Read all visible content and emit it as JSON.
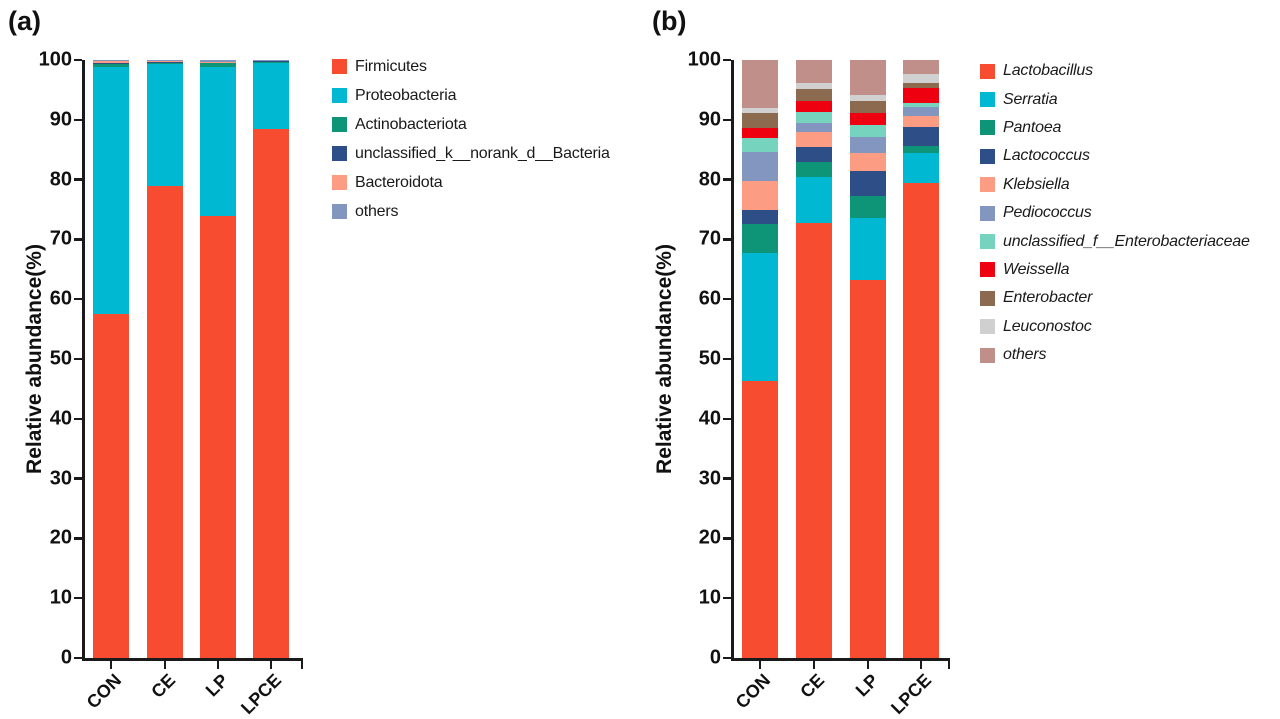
{
  "chart_data": [
    {
      "type": "bar",
      "stacked": true,
      "panel_label": "(a)",
      "ylabel": "Relative abundance(%)",
      "xlabel": "",
      "ylim": [
        0,
        100
      ],
      "yticks": [
        0,
        10,
        20,
        30,
        40,
        50,
        60,
        70,
        80,
        90,
        100
      ],
      "grid": false,
      "legend_position": "right",
      "legend_italic": false,
      "categories": [
        "CON",
        "CE",
        "LP",
        "LPCE"
      ],
      "series": [
        {
          "name": "Firmicutes",
          "color": "#F84C30",
          "values": [
            57.6,
            78.9,
            73.9,
            88.4
          ]
        },
        {
          "name": "Proteobacteria",
          "color": "#00B8D1",
          "values": [
            41.3,
            20.6,
            25.0,
            11.15
          ]
        },
        {
          "name": "Actinobacteriota",
          "color": "#0E9477",
          "values": [
            0.45,
            0.05,
            0.55,
            0.05
          ]
        },
        {
          "name": "unclassified_k__norank_d__Bacteria",
          "color": "#2E4E87",
          "values": [
            0.1,
            0.3,
            0.2,
            0.3
          ]
        },
        {
          "name": "Bacteroidota",
          "color": "#FB9C83",
          "values": [
            0.5,
            0.05,
            0.05,
            0.05
          ]
        },
        {
          "name": "others",
          "color": "#8396BF",
          "values": [
            0.05,
            0.1,
            0.3,
            0.05
          ]
        }
      ]
    },
    {
      "type": "bar",
      "stacked": true,
      "panel_label": "(b)",
      "ylabel": "Relative abundance(%)",
      "xlabel": "",
      "ylim": [
        0,
        100
      ],
      "yticks": [
        0,
        10,
        20,
        30,
        40,
        50,
        60,
        70,
        80,
        90,
        100
      ],
      "grid": false,
      "legend_position": "right",
      "legend_italic": true,
      "categories": [
        "CON",
        "CE",
        "LP",
        "LPCE"
      ],
      "series": [
        {
          "name": "Lactobacillus",
          "color": "#F84C30",
          "values": [
            46.3,
            72.8,
            63.2,
            79.5
          ]
        },
        {
          "name": "Serratia",
          "color": "#00B8D1",
          "values": [
            21.4,
            7.6,
            10.4,
            5.0
          ]
        },
        {
          "name": "Pantoea",
          "color": "#0E9477",
          "values": [
            4.8,
            2.6,
            3.6,
            1.1
          ]
        },
        {
          "name": "Lactococcus",
          "color": "#2E4E87",
          "values": [
            2.4,
            2.4,
            4.2,
            3.2
          ]
        },
        {
          "name": "Klebsiella",
          "color": "#FB9C83",
          "values": [
            4.8,
            2.6,
            3.1,
            1.8
          ]
        },
        {
          "name": "Pediococcus",
          "color": "#8396BF",
          "values": [
            5.0,
            1.5,
            2.6,
            1.6
          ]
        },
        {
          "name": "unclassified_f__Enterobacteriaceae",
          "color": "#76D3BD",
          "values": [
            2.3,
            1.8,
            2.1,
            0.6
          ]
        },
        {
          "name": "Weissella",
          "color": "#EE0011",
          "values": [
            1.6,
            1.8,
            2.0,
            2.5
          ]
        },
        {
          "name": "Enterobacter",
          "color": "#8C6A50",
          "values": [
            2.5,
            2.1,
            1.9,
            0.9
          ]
        },
        {
          "name": "Leuconostoc",
          "color": "#D0D0D0",
          "values": [
            0.9,
            1.0,
            1.0,
            1.4
          ]
        },
        {
          "name": "others",
          "color": "#C18F8A",
          "values": [
            8.0,
            3.8,
            5.9,
            2.4
          ]
        }
      ]
    }
  ]
}
